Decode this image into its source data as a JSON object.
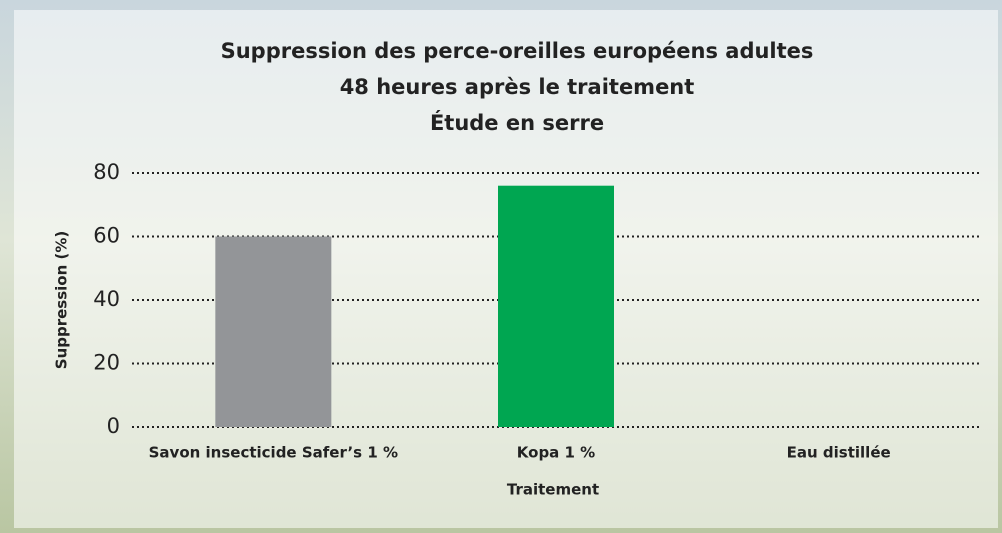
{
  "chart_data": {
    "type": "bar",
    "title": [
      "Suppression des perce-oreilles européens adultes",
      "48 heures après le traitement",
      "Étude en serre"
    ],
    "categories": [
      "Savon insecticide Safer’s 1 %",
      "Kopa 1 %",
      "Eau distillée"
    ],
    "values": [
      60,
      76,
      0
    ],
    "colors": [
      "#939598",
      "#00a651",
      "#939598"
    ],
    "xlabel": "Traitement",
    "ylabel": "Suppression (%)",
    "ylim": [
      0,
      80
    ],
    "yticks": [
      0,
      20,
      40,
      60,
      80
    ],
    "grid": true
  }
}
